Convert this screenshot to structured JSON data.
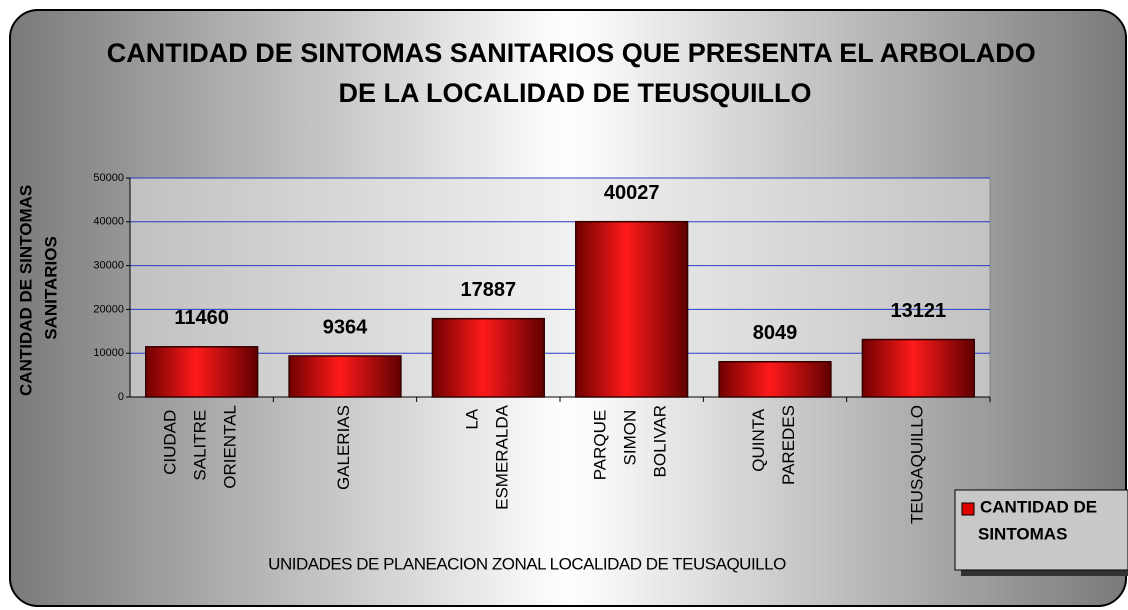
{
  "chart_data": {
    "type": "bar",
    "title": "CANTIDAD DE SINTOMAS SANITARIOS QUE PRESENTA EL ARBOLADO DE LA LOCALIDAD DE TEUSQUILLO",
    "y_label": "CANTIDAD DE SINTOMAS SANITARIOS",
    "x_label": "UNIDADES DE PLANEACION ZONAL LOCALIDAD DE TEUSAQUILLO",
    "categories": [
      "CIUDAD SALITRE ORIENTAL",
      "GALERIAS",
      "LA ESMERALDA",
      "PARQUE SIMON BOLIVAR",
      "QUINTA PAREDES",
      "TEUSAQUILLO"
    ],
    "series": [
      {
        "name": "CANTIDAD DE SINTOMAS",
        "color": "#e00000",
        "values": [
          11460,
          9364,
          17887,
          40027,
          8049,
          13121
        ]
      }
    ],
    "ylim": [
      0,
      50000
    ],
    "yticks": [
      0,
      10000,
      20000,
      30000,
      40000,
      50000
    ],
    "grid": true,
    "legend": "bottom-right"
  }
}
